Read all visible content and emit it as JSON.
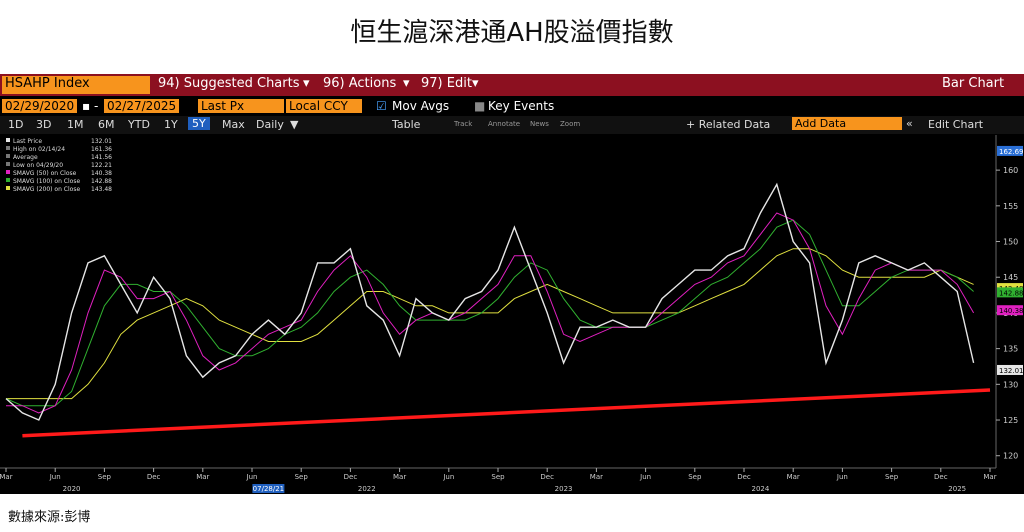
{
  "title": "恒生滬深港通AH股溢價指數",
  "source": "數據來源:彭博",
  "toolbar": {
    "ticker": "HSAHP Index",
    "suggested": "94) Suggested Charts",
    "actions": "96) Actions",
    "edit": "97) Edit",
    "bar_chart": "Bar Chart",
    "start": "02/29/2020",
    "end": "02/27/2025",
    "field": "Last Px",
    "currency": "Local CCY",
    "mov_avgs": "Mov Avgs",
    "key_events": "Key Events",
    "periods": [
      "1D",
      "3D",
      "1M",
      "6M",
      "YTD",
      "1Y",
      "5Y",
      "Max"
    ],
    "freq": "Daily",
    "table": "Table",
    "related": "+ Related Data",
    "add_data": "Add Data",
    "edit_chart": "Edit Chart",
    "tools": [
      "Track",
      "Annotate",
      "News",
      "Zoom"
    ]
  },
  "chart_data": {
    "type": "line",
    "x": [
      "2020-03",
      "2020-04",
      "2020-05",
      "2020-06",
      "2020-07",
      "2020-08",
      "2020-09",
      "2020-10",
      "2020-11",
      "2020-12",
      "2021-01",
      "2021-02",
      "2021-03",
      "2021-04",
      "2021-05",
      "2021-06",
      "2021-07",
      "2021-08",
      "2021-09",
      "2021-10",
      "2021-11",
      "2021-12",
      "2022-01",
      "2022-02",
      "2022-03",
      "2022-04",
      "2022-05",
      "2022-06",
      "2022-07",
      "2022-08",
      "2022-09",
      "2022-10",
      "2022-11",
      "2022-12",
      "2023-01",
      "2023-02",
      "2023-03",
      "2023-04",
      "2023-05",
      "2023-06",
      "2023-07",
      "2023-08",
      "2023-09",
      "2023-10",
      "2023-11",
      "2023-12",
      "2024-01",
      "2024-02",
      "2024-03",
      "2024-04",
      "2024-05",
      "2024-06",
      "2024-07",
      "2024-08",
      "2024-09",
      "2024-10",
      "2024-11",
      "2024-12",
      "2025-01",
      "2025-02"
    ],
    "xlim": [
      "2020-03",
      "2025-03"
    ],
    "series": [
      {
        "name": "Last Price",
        "color": "#e6e6e6",
        "last": 132.01,
        "values": [
          128,
          126,
          125,
          130,
          140,
          147,
          148,
          144,
          140,
          145,
          142,
          134,
          131,
          133,
          134,
          137,
          139,
          137,
          140,
          147,
          147,
          149,
          141,
          139,
          134,
          142,
          140,
          139,
          142,
          143,
          146,
          152,
          146,
          140,
          133,
          138,
          138,
          139,
          138,
          138,
          142,
          144,
          146,
          146,
          148,
          149,
          154,
          158,
          150,
          147,
          133,
          139,
          147,
          148,
          147,
          146,
          147,
          145,
          143,
          133
        ]
      },
      {
        "name": "SMAVG (50) on Close",
        "color": "#e020c0",
        "last": 140.38,
        "values": [
          127,
          127,
          126,
          127,
          132,
          140,
          146,
          145,
          142,
          142,
          143,
          139,
          134,
          132,
          133,
          135,
          137,
          138,
          139,
          143,
          146,
          148,
          145,
          140,
          137,
          139,
          140,
          139,
          140,
          142,
          144,
          148,
          148,
          143,
          137,
          136,
          137,
          138,
          138,
          138,
          140,
          142,
          144,
          145,
          147,
          148,
          151,
          154,
          153,
          149,
          141,
          137,
          142,
          146,
          147,
          146,
          146,
          146,
          144,
          140
        ]
      },
      {
        "name": "SMAVG (100) on Close",
        "color": "#30b030",
        "last": 142.88,
        "values": [
          128,
          127,
          127,
          127,
          129,
          135,
          141,
          144,
          144,
          143,
          143,
          141,
          138,
          135,
          134,
          134,
          135,
          137,
          138,
          140,
          143,
          145,
          146,
          144,
          141,
          139,
          139,
          139,
          139,
          140,
          142,
          145,
          147,
          146,
          142,
          139,
          138,
          138,
          138,
          138,
          139,
          140,
          142,
          144,
          145,
          147,
          149,
          152,
          153,
          151,
          146,
          141,
          141,
          143,
          145,
          146,
          146,
          146,
          145,
          143
        ]
      },
      {
        "name": "SMAVG (200) on Close",
        "color": "#e0e040",
        "last": 143.48,
        "values": [
          128,
          128,
          128,
          128,
          128,
          130,
          133,
          137,
          139,
          140,
          141,
          142,
          141,
          139,
          138,
          137,
          136,
          136,
          136,
          137,
          139,
          141,
          143,
          143,
          142,
          141,
          141,
          140,
          140,
          140,
          140,
          142,
          143,
          144,
          143,
          142,
          141,
          140,
          140,
          140,
          140,
          140,
          141,
          142,
          143,
          144,
          146,
          148,
          149,
          149,
          148,
          146,
          145,
          145,
          145,
          145,
          145,
          146,
          145,
          144
        ]
      }
    ],
    "legend_extra": [
      {
        "label": "High on 02/14/24",
        "value": 161.36
      },
      {
        "label": "Average",
        "value": 141.56
      },
      {
        "label": "Low on 04/29/20",
        "value": 122.21
      }
    ],
    "top_tag": {
      "value": 162.69,
      "color": "#2a6fd6"
    },
    "trendline": {
      "color": "#ff1a1a",
      "x": [
        "2020-04",
        "2025-03"
      ],
      "values": [
        122.8,
        129.2
      ]
    },
    "ylim": [
      118.7,
      163.8
    ],
    "yticks": [
      120,
      125,
      130,
      135,
      140,
      145,
      150,
      155,
      160
    ],
    "xticks": [
      {
        "value": "2020-03",
        "label": "Mar"
      },
      {
        "value": "2020-06",
        "label": "Jun"
      },
      {
        "value": "2020-09",
        "label": "Sep"
      },
      {
        "value": "2020-12",
        "label": "Dec"
      },
      {
        "value": "2021-03",
        "label": "Mar"
      },
      {
        "value": "2021-06",
        "label": "Jun"
      },
      {
        "value": "2021-09",
        "label": "Sep"
      },
      {
        "value": "2021-12",
        "label": "Dec"
      },
      {
        "value": "2022-03",
        "label": "Mar"
      },
      {
        "value": "2022-06",
        "label": "Jun"
      },
      {
        "value": "2022-09",
        "label": "Sep"
      },
      {
        "value": "2022-12",
        "label": "Dec"
      },
      {
        "value": "2023-03",
        "label": "Mar"
      },
      {
        "value": "2023-06",
        "label": "Jun"
      },
      {
        "value": "2023-09",
        "label": "Sep"
      },
      {
        "value": "2023-12",
        "label": "Dec"
      },
      {
        "value": "2024-03",
        "label": "Mar"
      },
      {
        "value": "2024-06",
        "label": "Jun"
      },
      {
        "value": "2024-09",
        "label": "Sep"
      },
      {
        "value": "2024-12",
        "label": "Dec"
      },
      {
        "value": "2025-03",
        "label": "Mar"
      }
    ],
    "year_ticks": [
      {
        "value": "2020-07",
        "label": "2020"
      },
      {
        "value": "2022-01",
        "label": "2022"
      },
      {
        "value": "2023-01",
        "label": "2023"
      },
      {
        "value": "2024-01",
        "label": "2024"
      },
      {
        "value": "2025-01",
        "label": "2025"
      }
    ],
    "highlight_date": {
      "value": "2021-07",
      "label": "07/28/21"
    }
  }
}
